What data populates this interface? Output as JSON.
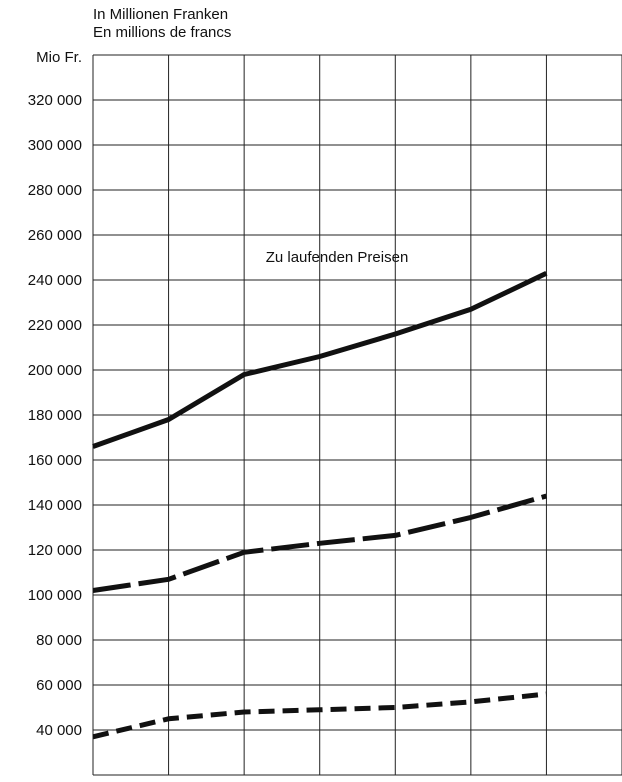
{
  "chart_data": {
    "type": "line",
    "title_lines": [
      "In Millionen Franken",
      "En millions de francs"
    ],
    "y_label": "Mio Fr.",
    "annotation": "Zu laufenden Preisen",
    "categories": [
      null,
      null,
      null,
      null,
      null,
      null,
      null
    ],
    "series": [
      {
        "color": "#111111",
        "dash": "solid",
        "values": [
          166000,
          178000,
          198000,
          206000,
          216000,
          227000,
          243000
        ]
      },
      {
        "color": "#111111",
        "dash": "long",
        "values": [
          102000,
          107000,
          119000,
          123000,
          126500,
          134500,
          144000
        ]
      },
      {
        "color": "#111111",
        "dash": "short",
        "values": [
          37000,
          45000,
          48000,
          49000,
          50000,
          52500,
          56000
        ]
      }
    ],
    "ylim": [
      20000,
      340000
    ],
    "yticks": [
      {
        "value": 40000,
        "label": "40 000"
      },
      {
        "value": 60000,
        "label": "60 000"
      },
      {
        "value": 80000,
        "label": "80 000"
      },
      {
        "value": 100000,
        "label": "100 000"
      },
      {
        "value": 120000,
        "label": "120 000"
      },
      {
        "value": 140000,
        "label": "140 000"
      },
      {
        "value": 160000,
        "label": "160 000"
      },
      {
        "value": 180000,
        "label": "180 000"
      },
      {
        "value": 200000,
        "label": "200 000"
      },
      {
        "value": 220000,
        "label": "220 000"
      },
      {
        "value": 240000,
        "label": "240 000"
      },
      {
        "value": 260000,
        "label": "260 000"
      },
      {
        "value": 280000,
        "label": "280 000"
      },
      {
        "value": 300000,
        "label": "300 000"
      },
      {
        "value": 320000,
        "label": "320 000"
      }
    ],
    "grid": true
  }
}
